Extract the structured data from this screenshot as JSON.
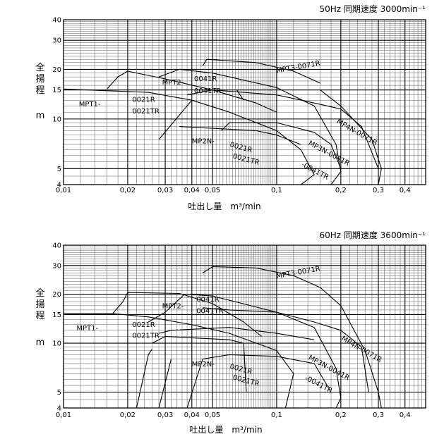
{
  "chart_data": [
    {
      "type": "line",
      "title": "50Hz 同期速度 3000min⁻¹",
      "xlabel": "吐出し量　m³/min",
      "ylabel_chars": [
        "全",
        "揚",
        "程"
      ],
      "ylabel_unit": "m",
      "xscale": "log",
      "yscale": "log",
      "xlim": [
        0.01,
        0.5
      ],
      "ylim": [
        4,
        40
      ],
      "x_ticks": [
        0.01,
        0.02,
        0.03,
        0.04,
        0.05,
        0.1,
        0.2,
        0.3,
        0.4
      ],
      "x_tick_labels": [
        "0,01",
        "0,02",
        "0,03",
        "0,04",
        "0,05",
        "0,1",
        "0,2",
        "0,3",
        "0,4"
      ],
      "y_ticks": [
        4,
        5,
        10,
        15,
        20,
        30,
        40
      ],
      "y_tick_labels": [
        "4",
        "5",
        "10",
        "15",
        "20",
        "30",
        "40"
      ],
      "grid": true,
      "curves": [
        {
          "points": [
            [
              0.01,
              15.2
            ],
            [
              0.025,
              14.5
            ],
            [
              0.04,
              13.0
            ],
            [
              0.06,
              11.0
            ],
            [
              0.1,
              8.5
            ],
            [
              0.13,
              6.5
            ],
            [
              0.15,
              4.6
            ],
            [
              0.13,
              4.0
            ]
          ]
        },
        {
          "points": [
            [
              0.016,
              15.2
            ],
            [
              0.018,
              18.0
            ],
            [
              0.02,
              19.5
            ],
            [
              0.03,
              17.5
            ],
            [
              0.05,
              15.0
            ],
            [
              0.08,
              12.5
            ],
            [
              0.1,
              11.0
            ]
          ]
        },
        {
          "points": [
            [
              0.028,
              18.0
            ],
            [
              0.035,
              20.0
            ],
            [
              0.05,
              19.0
            ],
            [
              0.1,
              15.5
            ],
            [
              0.15,
              12.0
            ],
            [
              0.19,
              7.0
            ],
            [
              0.2,
              4.8
            ],
            [
              0.18,
              4.0
            ]
          ]
        },
        {
          "points": [
            [
              0.028,
              7.5
            ],
            [
              0.04,
              13.0
            ]
          ]
        },
        {
          "points": [
            [
              0.038,
              14.0
            ],
            [
              0.05,
              15.0
            ],
            [
              0.1,
              14.0
            ],
            [
              0.15,
              12.5
            ],
            [
              0.2,
              11.5
            ],
            [
              0.25,
              9.0
            ],
            [
              0.3,
              5.0
            ]
          ]
        },
        {
          "points": [
            [
              0.045,
              21.0
            ],
            [
              0.047,
              23.0
            ],
            [
              0.08,
              22.0
            ],
            [
              0.12,
              19.5
            ],
            [
              0.16,
              16.5
            ]
          ]
        },
        {
          "points": [
            [
              0.16,
              15.0
            ],
            [
              0.2,
              12.0
            ],
            [
              0.28,
              7.5
            ],
            [
              0.31,
              5.0
            ],
            [
              0.3,
              4.0
            ]
          ]
        },
        {
          "points": [
            [
              0.065,
              15.0
            ],
            [
              0.07,
              13.0
            ]
          ]
        },
        {
          "points": [
            [
              0.035,
              9.0
            ],
            [
              0.08,
              8.5
            ],
            [
              0.1,
              8.0
            ],
            [
              0.13,
              7.0
            ]
          ]
        },
        {
          "points": [
            [
              0.055,
              8.5
            ],
            [
              0.06,
              9.5
            ],
            [
              0.1,
              9.5
            ],
            [
              0.15,
              8.3
            ],
            [
              0.18,
              7.0
            ],
            [
              0.2,
              5.0
            ]
          ]
        }
      ],
      "annotations": [
        {
          "text": "MPT1-",
          "x": 0.0118,
          "y": 11.9
        },
        {
          "text": "0021R",
          "x": 0.021,
          "y": 12.7
        },
        {
          "text": "0021TR",
          "x": 0.021,
          "y": 10.8
        },
        {
          "text": "MPT2-",
          "x": 0.029,
          "y": 16.2
        },
        {
          "text": "0041R",
          "x": 0.041,
          "y": 17.0
        },
        {
          "text": "0041TR",
          "x": 0.041,
          "y": 14.4
        },
        {
          "text": "MPT3-0071R",
          "x": 0.1,
          "y": 19.0,
          "rotate": -10
        },
        {
          "text": "MP4N-0071R",
          "x": 0.19,
          "y": 9.5,
          "rotate": 30
        },
        {
          "text": "MP3N-0041R",
          "x": 0.14,
          "y": 7.0,
          "rotate": 28
        },
        {
          "text": "-0041TR",
          "x": 0.13,
          "y": 5.2,
          "rotate": 28
        },
        {
          "text": "MP2N-",
          "x": 0.04,
          "y": 7.1
        },
        {
          "text": "0021R",
          "x": 0.06,
          "y": 6.8,
          "rotate": 15
        },
        {
          "text": "0021TR",
          "x": 0.062,
          "y": 5.8,
          "rotate": 15
        }
      ]
    },
    {
      "type": "line",
      "title": "60Hz 同期速度 3600min⁻¹",
      "xlabel": "吐出し量　m³/min",
      "ylabel_chars": [
        "全",
        "揚",
        "程"
      ],
      "ylabel_unit": "m",
      "xscale": "log",
      "yscale": "log",
      "xlim": [
        0.01,
        0.5
      ],
      "ylim": [
        4,
        40
      ],
      "x_ticks": [
        0.01,
        0.02,
        0.03,
        0.04,
        0.05,
        0.1,
        0.2,
        0.3,
        0.4
      ],
      "x_tick_labels": [
        "0,01",
        "0,02",
        "0,03",
        "0,04",
        "0,05",
        "0,1",
        "0,2",
        "0,3",
        "0,4"
      ],
      "y_ticks": [
        4,
        5,
        10,
        15,
        20,
        30,
        40
      ],
      "y_tick_labels": [
        "4",
        "5",
        "10",
        "15",
        "20",
        "30",
        "40"
      ],
      "grid": true,
      "curves": [
        {
          "points": [
            [
              0.01,
              15.2
            ],
            [
              0.017,
              15.2
            ],
            [
              0.025,
              14.5
            ],
            [
              0.04,
              13.0
            ],
            [
              0.06,
              11.5
            ],
            [
              0.1,
              9.0
            ],
            [
              0.12,
              6.5
            ],
            [
              0.11,
              4.0
            ]
          ]
        },
        {
          "points": [
            [
              0.017,
              15.2
            ],
            [
              0.019,
              18.0
            ],
            [
              0.02,
              20.5
            ],
            [
              0.035,
              20.2
            ],
            [
              0.05,
              17.5
            ],
            [
              0.07,
              13.5
            ],
            [
              0.085,
              11.0
            ]
          ]
        },
        {
          "points": [
            [
              0.025,
              13.5
            ],
            [
              0.03,
              15.5
            ],
            [
              0.037,
              20.0
            ],
            [
              0.05,
              19.5
            ],
            [
              0.1,
              15.5
            ],
            [
              0.15,
              12.5
            ],
            [
              0.19,
              7.0
            ],
            [
              0.2,
              4.6
            ],
            [
              0.19,
              4.0
            ]
          ]
        },
        {
          "points": [
            [
              0.022,
              4.0
            ],
            [
              0.025,
              8.5
            ],
            [
              0.026,
              9.2
            ]
          ]
        },
        {
          "points": [
            [
              0.026,
              10.0
            ],
            [
              0.03,
              11.0
            ],
            [
              0.06,
              10.5
            ],
            [
              0.07,
              10.0
            ],
            [
              0.072,
              5.0
            ]
          ]
        },
        {
          "points": [
            [
              0.028,
              4.0
            ],
            [
              0.032,
              8.0
            ]
          ]
        },
        {
          "points": [
            [
              0.045,
              27.0
            ],
            [
              0.05,
              29.5
            ],
            [
              0.08,
              29.0
            ],
            [
              0.12,
              26.0
            ],
            [
              0.16,
              22.0
            ],
            [
              0.2,
              17.0
            ],
            [
              0.26,
              9.0
            ],
            [
              0.3,
              5.0
            ],
            [
              0.31,
              4.0
            ]
          ]
        },
        {
          "points": [
            [
              0.045,
              16.5
            ],
            [
              0.06,
              16.0
            ],
            [
              0.1,
              15.5
            ],
            [
              0.15,
              13.5
            ],
            [
              0.2,
              12.0
            ],
            [
              0.25,
              9.5
            ],
            [
              0.27,
              5.0
            ]
          ]
        },
        {
          "points": [
            [
              0.038,
              4.0
            ],
            [
              0.045,
              8.0
            ],
            [
              0.06,
              8.5
            ],
            [
              0.1,
              8.3
            ],
            [
              0.15,
              7.5
            ],
            [
              0.18,
              5.0
            ]
          ]
        },
        {
          "points": [
            [
              0.028,
              11.5
            ],
            [
              0.032,
              12.0
            ],
            [
              0.06,
              12.5
            ],
            [
              0.1,
              11.5
            ],
            [
              0.15,
              10.5
            ]
          ]
        }
      ],
      "annotations": [
        {
          "text": "MPT1-",
          "x": 0.0115,
          "y": 12.0
        },
        {
          "text": "0021R",
          "x": 0.021,
          "y": 12.6
        },
        {
          "text": "0021TR",
          "x": 0.021,
          "y": 10.8
        },
        {
          "text": "MPT2-",
          "x": 0.029,
          "y": 16.4
        },
        {
          "text": "0041R",
          "x": 0.042,
          "y": 18.0
        },
        {
          "text": "0041TR",
          "x": 0.042,
          "y": 15.3
        },
        {
          "text": "MPT3-0071R",
          "x": 0.1,
          "y": 25.0,
          "rotate": -10
        },
        {
          "text": "MP4N-0071R",
          "x": 0.2,
          "y": 10.5,
          "rotate": 30
        },
        {
          "text": "MP3N-0041R",
          "x": 0.14,
          "y": 8.0,
          "rotate": 28
        },
        {
          "text": "-0041TR",
          "x": 0.135,
          "y": 6.0,
          "rotate": 28
        },
        {
          "text": "MP2N-",
          "x": 0.04,
          "y": 7.2
        },
        {
          "text": "0021R",
          "x": 0.06,
          "y": 7.0,
          "rotate": 15
        },
        {
          "text": "0021TR",
          "x": 0.062,
          "y": 6.0,
          "rotate": 15
        }
      ]
    }
  ]
}
